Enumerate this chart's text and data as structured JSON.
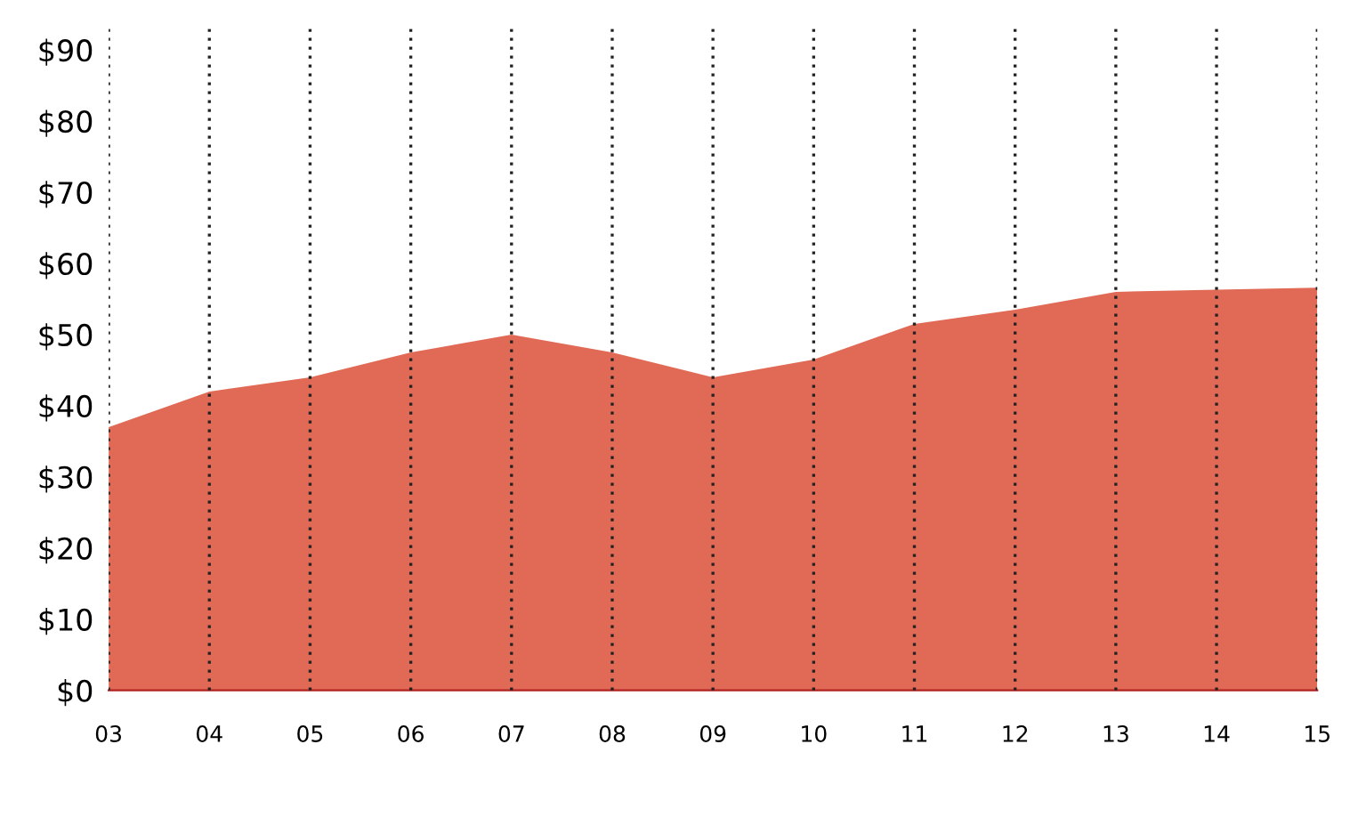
{
  "chart_data": {
    "type": "area",
    "categories": [
      "03",
      "04",
      "05",
      "06",
      "07",
      "08",
      "09",
      "10",
      "11",
      "12",
      "13",
      "14",
      "15"
    ],
    "series": [
      {
        "color": "#e06a55",
        "values": [
          37,
          42,
          44,
          47.5,
          50,
          47.5,
          44,
          46.5,
          51.5,
          53.5,
          56,
          56.3,
          56.6
        ]
      }
    ],
    "ylim": [
      0,
      93
    ],
    "yticks": [
      {
        "value": 0,
        "label": "$0"
      },
      {
        "value": 10,
        "label": "$10"
      },
      {
        "value": 20,
        "label": "$20"
      },
      {
        "value": 30,
        "label": "$30"
      },
      {
        "value": 40,
        "label": "$40"
      },
      {
        "value": 50,
        "label": "$50"
      },
      {
        "value": 60,
        "label": "$60"
      },
      {
        "value": 70,
        "label": "$70"
      },
      {
        "value": 80,
        "label": "$80"
      },
      {
        "value": 90,
        "label": "$90"
      }
    ],
    "grid": "x",
    "legend": false
  }
}
